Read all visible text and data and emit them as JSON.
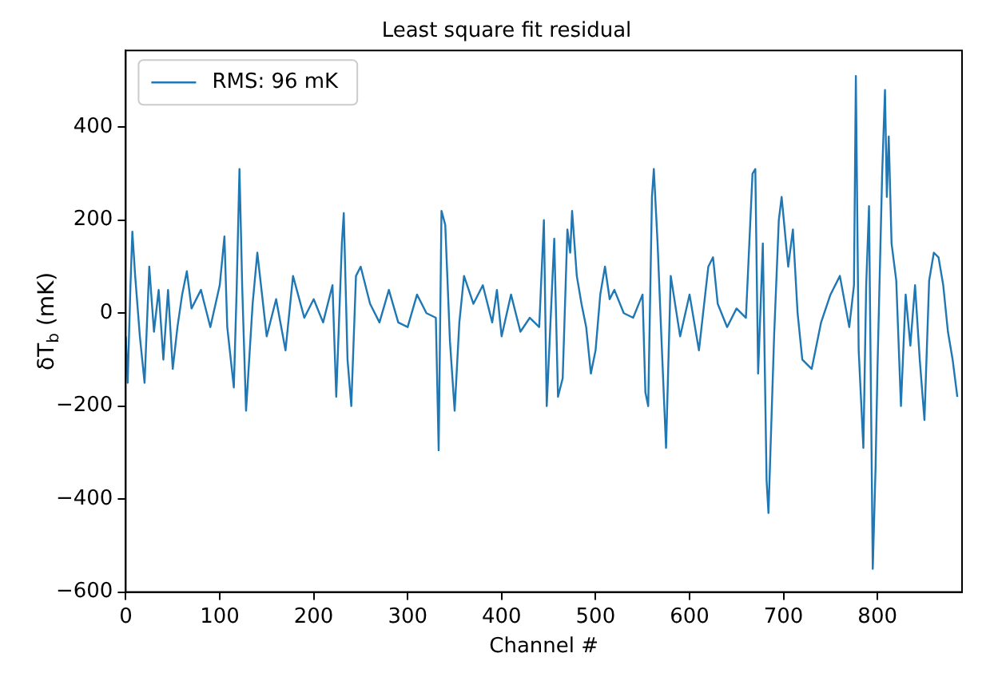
{
  "chart_data": {
    "type": "line",
    "title": "Least square fit residual",
    "xlabel": "Channel #",
    "ylabel": "δT$_{b}$ (mK)",
    "xlim": [
      0,
      890
    ],
    "xticks": [
      0,
      100,
      200,
      300,
      400,
      500,
      600,
      700,
      800
    ],
    "ylim": [
      -600,
      565
    ],
    "yticks": [
      -600,
      -400,
      -200,
      0,
      200,
      400
    ],
    "grid": false,
    "legend": "top left",
    "marker": "none",
    "line_style": "solid",
    "series": [
      {
        "name": "RMS: 96 mK",
        "color": "#1f77b4",
        "x": [
          0,
          2,
          5,
          7,
          10,
          15,
          20,
          25,
          30,
          35,
          40,
          45,
          50,
          55,
          60,
          65,
          70,
          80,
          90,
          100,
          105,
          108,
          115,
          118,
          121,
          124,
          128,
          135,
          140,
          150,
          160,
          170,
          178,
          190,
          200,
          210,
          220,
          224,
          230,
          232,
          236,
          240,
          245,
          250,
          260,
          270,
          280,
          290,
          300,
          310,
          320,
          330,
          333,
          336,
          340,
          345,
          350,
          355,
          360,
          370,
          380,
          390,
          395,
          400,
          410,
          420,
          430,
          440,
          445,
          448,
          452,
          456,
          460,
          465,
          470,
          473,
          475,
          480,
          485,
          490,
          495,
          500,
          505,
          510,
          515,
          520,
          530,
          540,
          550,
          553,
          556,
          560,
          562,
          566,
          570,
          575,
          580,
          590,
          600,
          610,
          620,
          625,
          630,
          640,
          650,
          660,
          667,
          670,
          673,
          678,
          682,
          684,
          690,
          695,
          698,
          705,
          710,
          715,
          720,
          730,
          740,
          750,
          760,
          770,
          775,
          777,
          780,
          785,
          788,
          791,
          795,
          798,
          800,
          805,
          808,
          810,
          812,
          815,
          820,
          825,
          830,
          835,
          840,
          845,
          850,
          855,
          860,
          865,
          870,
          875,
          880,
          885
        ],
        "values": [
          -50,
          -150,
          60,
          175,
          80,
          -50,
          -150,
          100,
          -40,
          50,
          -100,
          50,
          -120,
          -30,
          40,
          90,
          10,
          50,
          -30,
          60,
          165,
          -30,
          -160,
          50,
          310,
          50,
          -210,
          20,
          130,
          -50,
          30,
          -80,
          80,
          -10,
          30,
          -20,
          60,
          -180,
          150,
          215,
          -100,
          -200,
          80,
          100,
          20,
          -20,
          50,
          -20,
          -30,
          40,
          0,
          -10,
          -295,
          220,
          190,
          -60,
          -210,
          -20,
          80,
          20,
          60,
          -20,
          50,
          -50,
          40,
          -40,
          -10,
          -30,
          200,
          -200,
          -20,
          160,
          -180,
          -140,
          180,
          130,
          220,
          80,
          20,
          -30,
          -130,
          -80,
          40,
          100,
          30,
          50,
          0,
          -10,
          40,
          -170,
          -200,
          250,
          310,
          150,
          -50,
          -290,
          80,
          -50,
          40,
          -80,
          100,
          120,
          20,
          -30,
          10,
          -10,
          300,
          310,
          -130,
          150,
          -360,
          -430,
          -50,
          200,
          250,
          100,
          180,
          0,
          -100,
          -120,
          -20,
          40,
          80,
          -30,
          60,
          510,
          -80,
          -290,
          60,
          230,
          -550,
          -330,
          -120,
          300,
          480,
          250,
          380,
          150,
          70,
          -200,
          40,
          -70,
          60,
          -100,
          -230,
          70,
          130,
          120,
          60,
          -40,
          -100,
          -180
        ]
      }
    ]
  }
}
